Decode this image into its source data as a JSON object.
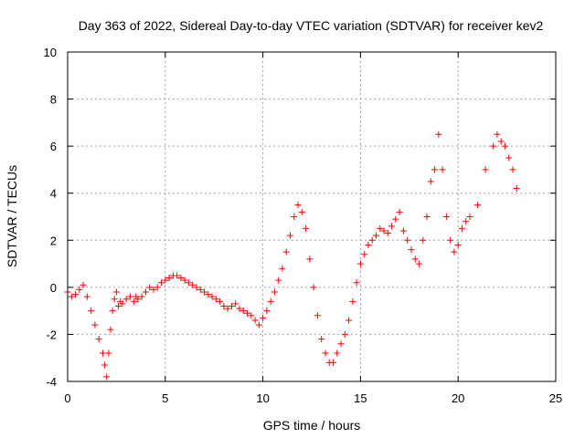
{
  "chart_data": {
    "type": "scatter",
    "title": "Day 363 of 2022, Sidereal Day-to-day VTEC variation (SDTVAR) for receiver kev2",
    "xlabel": "GPS time / hours",
    "ylabel": "SDTVAR / TECUs",
    "xlim": [
      0,
      25
    ],
    "ylim": [
      -4,
      10
    ],
    "x_ticks": [
      0,
      5,
      10,
      15,
      20,
      25
    ],
    "x_tick_labels": [
      "0",
      "5",
      "10",
      "15",
      "20",
      "25"
    ],
    "y_ticks": [
      -4,
      -2,
      0,
      2,
      4,
      6,
      8,
      10
    ],
    "y_tick_labels": [
      "-4",
      "-2",
      "0",
      "2",
      "4",
      "6",
      "8",
      "10"
    ],
    "grid": true,
    "marker": "+",
    "color": "#ff0000",
    "series": [
      {
        "name": "SDTVAR",
        "x": [
          0.0,
          0.2,
          0.4,
          0.6,
          0.8,
          1.0,
          1.2,
          1.4,
          1.6,
          1.8,
          1.9,
          2.0,
          2.1,
          2.2,
          2.3,
          2.4,
          2.5,
          2.6,
          2.7,
          2.8,
          3.0,
          3.2,
          3.4,
          3.5,
          3.6,
          3.8,
          4.0,
          4.2,
          4.4,
          4.6,
          4.8,
          5.0,
          5.2,
          5.4,
          5.6,
          5.8,
          6.0,
          6.2,
          6.4,
          6.6,
          6.8,
          7.0,
          7.2,
          7.4,
          7.6,
          7.8,
          8.0,
          8.2,
          8.4,
          8.6,
          8.8,
          9.0,
          9.2,
          9.4,
          9.6,
          9.8,
          10.0,
          10.2,
          10.4,
          10.6,
          10.8,
          11.0,
          11.2,
          11.4,
          11.6,
          11.8,
          12.0,
          12.2,
          12.4,
          12.6,
          12.8,
          13.0,
          13.2,
          13.4,
          13.6,
          13.8,
          14.0,
          14.2,
          14.4,
          14.6,
          14.8,
          15.0,
          15.2,
          15.4,
          15.6,
          15.8,
          16.0,
          16.2,
          16.4,
          16.6,
          16.8,
          17.0,
          17.2,
          17.4,
          17.6,
          17.8,
          18.0,
          18.2,
          18.4,
          18.6,
          18.8,
          19.0,
          19.2,
          19.4,
          19.6,
          19.8,
          20.0,
          20.2,
          20.4,
          20.6,
          21.0,
          21.4,
          21.8,
          22.0,
          22.2,
          22.4,
          22.6,
          22.8,
          23.0
        ],
        "y": [
          -0.2,
          -0.4,
          -0.3,
          -0.1,
          0.1,
          -0.4,
          -1.0,
          -1.6,
          -2.2,
          -2.8,
          -3.3,
          -3.8,
          -2.8,
          -1.8,
          -1.0,
          -0.5,
          -0.2,
          -0.8,
          -0.6,
          -0.7,
          -0.5,
          -0.4,
          -0.6,
          -0.4,
          -0.5,
          -0.4,
          -0.2,
          0.0,
          -0.1,
          0.0,
          0.2,
          0.3,
          0.4,
          0.5,
          0.5,
          0.4,
          0.3,
          0.2,
          0.1,
          0.0,
          -0.1,
          -0.2,
          -0.3,
          -0.4,
          -0.5,
          -0.6,
          -0.8,
          -0.9,
          -0.8,
          -0.7,
          -0.9,
          -1.0,
          -1.1,
          -1.2,
          -1.4,
          -1.6,
          -1.3,
          -1.0,
          -0.6,
          -0.2,
          0.3,
          0.8,
          1.5,
          2.2,
          3.0,
          3.5,
          3.2,
          2.5,
          1.2,
          0.0,
          -1.2,
          -2.2,
          -2.8,
          -3.2,
          -3.2,
          -2.8,
          -2.4,
          -2.0,
          -1.4,
          -0.6,
          0.2,
          1.0,
          1.4,
          1.8,
          2.0,
          2.2,
          2.5,
          2.4,
          2.3,
          2.6,
          2.9,
          3.2,
          2.4,
          2.0,
          1.6,
          1.2,
          1.0,
          2.0,
          3.0,
          4.5,
          5.0,
          6.5,
          5.0,
          3.0,
          2.0,
          1.5,
          1.8,
          2.5,
          2.8,
          3.0,
          3.5,
          5.0,
          6.0,
          6.5,
          6.2,
          6.0,
          5.5,
          5.0,
          4.2
        ]
      }
    ]
  }
}
